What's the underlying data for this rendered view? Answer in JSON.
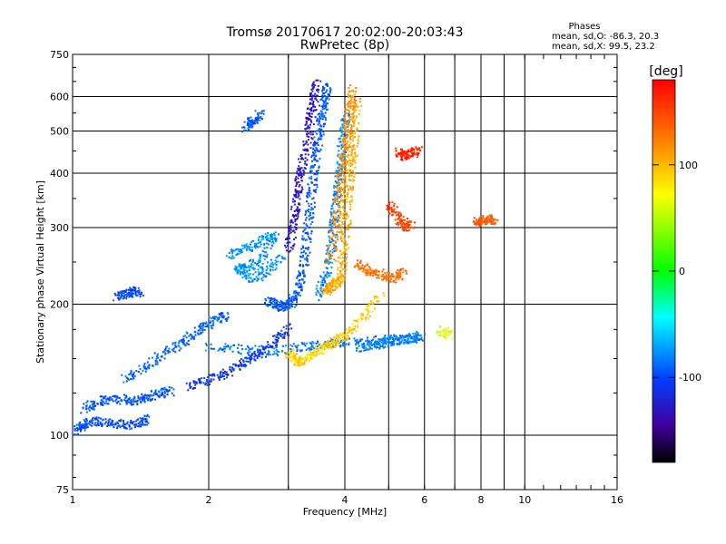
{
  "chart_data": {
    "type": "scatter",
    "title": "Tromsø 20170617 20:02:00-20:03:43",
    "subtitle": "RwPretec (8p)",
    "xlabel": "Frequency [MHz]",
    "ylabel": "Stationary phase Virtual Height [km]",
    "x_scale": "log",
    "y_scale": "log",
    "xlim": [
      1,
      16
    ],
    "ylim": [
      75,
      750
    ],
    "x_ticks": [
      1,
      2,
      4,
      6,
      8,
      10,
      16
    ],
    "x_tick_labels": [
      "1",
      "2",
      "4",
      "6",
      "8",
      "10",
      "16"
    ],
    "x_minor_ticks": [
      3,
      5,
      7,
      9
    ],
    "y_ticks": [
      75,
      100,
      200,
      300,
      400,
      500,
      600,
      750
    ],
    "y_tick_labels": [
      "75",
      "100",
      "200",
      "300",
      "400",
      "500",
      "600",
      "750"
    ],
    "grid": true,
    "stats": {
      "heading": "Phases",
      "line_o": "mean, sd,O: -86.3, 20.3",
      "line_x": "mean, sd,X:  99.5, 23.2"
    },
    "colorbar": {
      "label": "[deg]",
      "range": [
        -180,
        180
      ],
      "ticks": [
        100,
        0,
        -100
      ],
      "tick_labels": [
        "100",
        "0",
        "-100"
      ]
    },
    "traces": [
      {
        "phase": -100,
        "points": [
          [
            1.0,
            102
          ],
          [
            1.05,
            106
          ],
          [
            1.1,
            108
          ],
          [
            1.2,
            107
          ],
          [
            1.3,
            106
          ],
          [
            1.4,
            107
          ],
          [
            1.45,
            110
          ]
        ]
      },
      {
        "phase": -95,
        "points": [
          [
            1.05,
            115
          ],
          [
            1.15,
            120
          ],
          [
            1.25,
            122
          ],
          [
            1.35,
            120
          ],
          [
            1.45,
            123
          ],
          [
            1.55,
            125
          ],
          [
            1.65,
            127
          ]
        ]
      },
      {
        "phase": -90,
        "points": [
          [
            1.3,
            135
          ],
          [
            1.45,
            145
          ],
          [
            1.6,
            155
          ],
          [
            1.75,
            165
          ],
          [
            1.9,
            175
          ],
          [
            2.05,
            185
          ],
          [
            2.2,
            190
          ]
        ]
      },
      {
        "phase": -85,
        "points": [
          [
            2.0,
            160
          ],
          [
            2.4,
            158
          ],
          [
            2.8,
            157
          ],
          [
            3.2,
            160
          ],
          [
            3.6,
            163
          ],
          [
            4.0,
            165
          ],
          [
            4.6,
            166
          ],
          [
            5.2,
            167
          ],
          [
            5.8,
            168
          ]
        ]
      },
      {
        "phase": -110,
        "points": [
          [
            1.8,
            130
          ],
          [
            2.0,
            135
          ],
          [
            2.2,
            140
          ],
          [
            2.4,
            148
          ],
          [
            2.6,
            155
          ],
          [
            2.8,
            165
          ],
          [
            3.0,
            178
          ]
        ]
      },
      {
        "phase": -75,
        "points": [
          [
            2.2,
            260
          ],
          [
            2.4,
            270
          ],
          [
            2.6,
            280
          ],
          [
            2.8,
            290
          ],
          [
            2.6,
            250
          ],
          [
            2.4,
            245
          ],
          [
            2.3,
            240
          ],
          [
            2.5,
            230
          ],
          [
            2.7,
            240
          ],
          [
            2.9,
            260
          ]
        ]
      },
      {
        "phase": -95,
        "points": [
          [
            2.7,
            205
          ],
          [
            2.8,
            200
          ],
          [
            2.9,
            198
          ],
          [
            3.0,
            200
          ],
          [
            3.1,
            210
          ],
          [
            3.2,
            230
          ],
          [
            3.25,
            260
          ],
          [
            3.3,
            300
          ],
          [
            3.35,
            350
          ],
          [
            3.4,
            400
          ],
          [
            3.45,
            450
          ],
          [
            3.5,
            500
          ],
          [
            3.55,
            550
          ],
          [
            3.6,
            600
          ],
          [
            3.65,
            640
          ]
        ]
      },
      {
        "phase": -130,
        "points": [
          [
            3.0,
            270
          ],
          [
            3.05,
            300
          ],
          [
            3.1,
            340
          ],
          [
            3.15,
            380
          ],
          [
            3.2,
            420
          ],
          [
            3.3,
            480
          ],
          [
            3.35,
            540
          ],
          [
            3.4,
            600
          ],
          [
            3.45,
            650
          ]
        ]
      },
      {
        "phase": -80,
        "points": [
          [
            3.5,
            210
          ],
          [
            3.6,
            230
          ],
          [
            3.7,
            260
          ],
          [
            3.75,
            300
          ],
          [
            3.8,
            340
          ],
          [
            3.85,
            380
          ],
          [
            3.9,
            430
          ],
          [
            3.95,
            490
          ],
          [
            4.0,
            550
          ]
        ]
      },
      {
        "phase": 105,
        "points": [
          [
            3.6,
            215
          ],
          [
            3.7,
            220
          ],
          [
            3.8,
            225
          ],
          [
            3.9,
            230
          ],
          [
            3.95,
            260
          ],
          [
            4.0,
            300
          ],
          [
            4.05,
            350
          ],
          [
            4.1,
            400
          ],
          [
            4.15,
            450
          ],
          [
            4.2,
            520
          ],
          [
            4.25,
            600
          ]
        ]
      },
      {
        "phase": 115,
        "points": [
          [
            3.7,
            250
          ],
          [
            3.8,
            300
          ],
          [
            3.85,
            340
          ],
          [
            3.9,
            380
          ],
          [
            3.95,
            420
          ],
          [
            4.0,
            470
          ],
          [
            4.05,
            520
          ],
          [
            4.1,
            580
          ],
          [
            4.15,
            630
          ]
        ]
      },
      {
        "phase": 90,
        "points": [
          [
            3.0,
            155
          ],
          [
            3.1,
            150
          ],
          [
            3.2,
            148
          ],
          [
            3.4,
            155
          ],
          [
            3.6,
            160
          ],
          [
            3.8,
            165
          ],
          [
            4.0,
            170
          ],
          [
            4.4,
            190
          ],
          [
            4.8,
            210
          ]
        ]
      },
      {
        "phase": 130,
        "points": [
          [
            4.2,
            250
          ],
          [
            4.5,
            240
          ],
          [
            4.8,
            235
          ],
          [
            5.1,
            230
          ],
          [
            5.4,
            240
          ]
        ]
      },
      {
        "phase": 150,
        "points": [
          [
            5.0,
            340
          ],
          [
            5.2,
            320
          ],
          [
            5.4,
            300
          ],
          [
            5.6,
            310
          ]
        ]
      },
      {
        "phase": 165,
        "points": [
          [
            5.2,
            450
          ],
          [
            5.4,
            440
          ],
          [
            5.6,
            445
          ],
          [
            5.8,
            455
          ]
        ]
      },
      {
        "phase": 140,
        "points": [
          [
            7.8,
            310
          ],
          [
            8.0,
            312
          ],
          [
            8.3,
            315
          ],
          [
            8.5,
            312
          ]
        ]
      },
      {
        "phase": -80,
        "points": [
          [
            4.3,
            160
          ],
          [
            4.6,
            162
          ],
          [
            4.9,
            164
          ],
          [
            5.2,
            166
          ],
          [
            5.6,
            168
          ],
          [
            5.9,
            170
          ]
        ]
      },
      {
        "phase": -100,
        "points": [
          [
            1.25,
            210
          ],
          [
            1.3,
            212
          ],
          [
            1.35,
            215
          ],
          [
            1.4,
            213
          ]
        ]
      },
      {
        "phase": -95,
        "points": [
          [
            2.4,
            510
          ],
          [
            2.5,
            530
          ],
          [
            2.6,
            550
          ]
        ]
      },
      {
        "phase": 60,
        "points": [
          [
            6.5,
            175
          ],
          [
            6.8,
            170
          ]
        ]
      }
    ]
  }
}
